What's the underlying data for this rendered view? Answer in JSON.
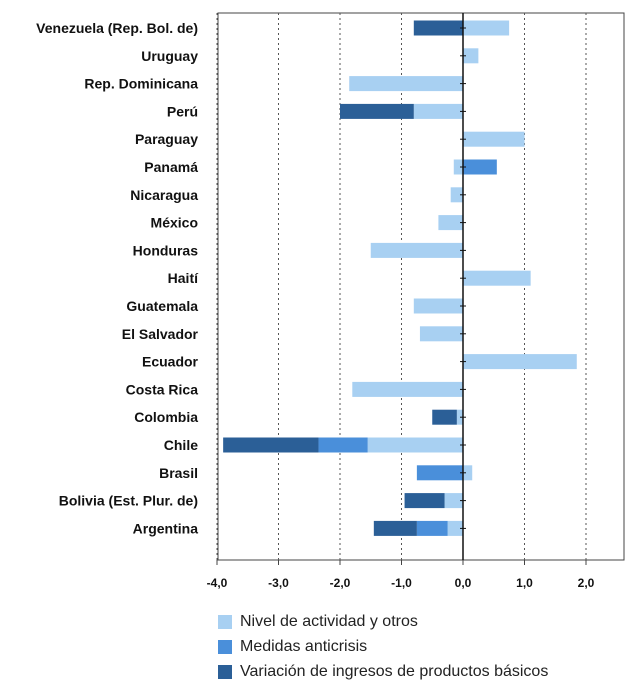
{
  "chart_data": {
    "type": "bar",
    "orientation": "horizontal",
    "stacked": true,
    "categories": [
      "Venezuela (Rep. Bol. de)",
      "Uruguay",
      "Rep. Dominicana",
      "Perú",
      "Paraguay",
      "Panamá",
      "Nicaragua",
      "México",
      "Honduras",
      "Haití",
      "Guatemala",
      "El Salvador",
      "Ecuador",
      "Costa Rica",
      "Colombia",
      "Chile",
      "Brasil",
      "Bolivia (Est. Plur. de)",
      "Argentina"
    ],
    "series": [
      {
        "name": "Nivel de actividad y otros",
        "color": "#a8d0f2",
        "values": [
          0.75,
          0.25,
          -1.85,
          -0.8,
          1.0,
          -0.15,
          -0.2,
          -0.4,
          -1.5,
          1.1,
          -0.8,
          -0.7,
          1.85,
          -1.8,
          -0.1,
          -1.55,
          0.15,
          -0.3,
          -0.25
        ]
      },
      {
        "name": "Medidas anticrisis",
        "color": "#4a8fda",
        "values": [
          0,
          0,
          0,
          0,
          0,
          0.55,
          0,
          0,
          0,
          0,
          0,
          0,
          0,
          0,
          0,
          -0.8,
          -0.75,
          0,
          -0.5
        ]
      },
      {
        "name": "Variación de ingresos de productos básicos",
        "color": "#2b5f97",
        "values": [
          -0.8,
          0,
          0,
          -1.2,
          0,
          0,
          0,
          0,
          0,
          0,
          0,
          0,
          0,
          0,
          -0.4,
          -1.55,
          0,
          -0.65,
          -0.7
        ]
      }
    ],
    "xlim": [
      -4.0,
      2.0
    ],
    "xticks": [
      "-4,0",
      "-3,0",
      "-2,0",
      "-1,0",
      "0,0",
      "1,0",
      "2,0"
    ],
    "grid": "vertical-dashed",
    "legend_position": "bottom"
  }
}
